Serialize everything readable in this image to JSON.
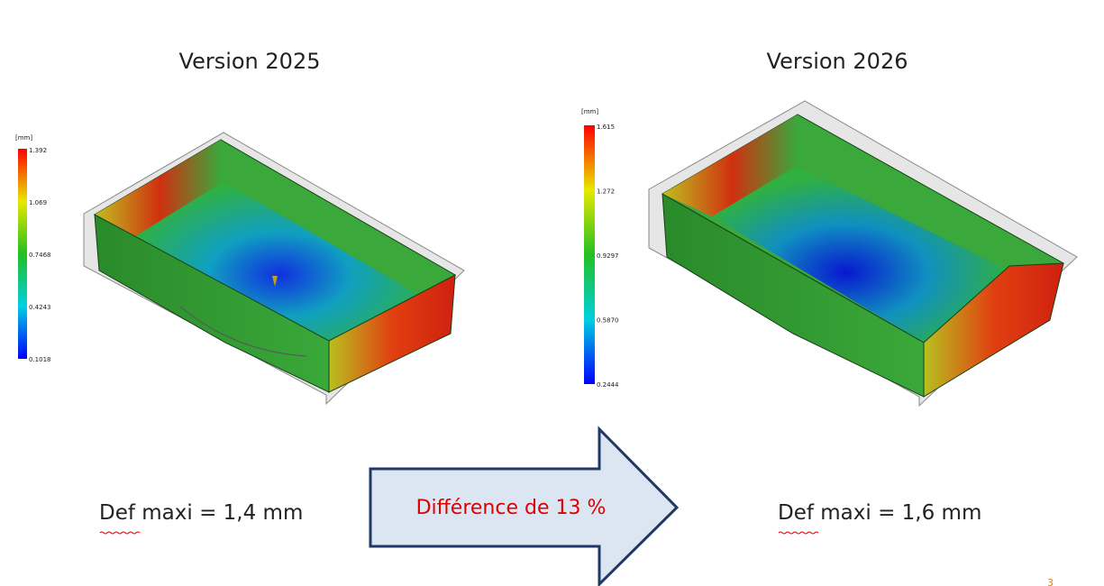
{
  "left": {
    "title": "Version 2025",
    "legend": {
      "unit": "[mm]",
      "ticks": [
        "1.392",
        "1.069",
        "0.7468",
        "0.4243",
        "0.1018"
      ]
    },
    "caption": "Def maxi = 1,4 mm"
  },
  "right": {
    "title": "Version 2026",
    "legend": {
      "unit": "[mm]",
      "ticks": [
        "1.615",
        "1.272",
        "0.9297",
        "0.5870",
        "0.2444"
      ]
    },
    "caption": "Def maxi = 1,6 mm"
  },
  "arrow_text": "Différence de 13 %",
  "page_number": "3"
}
